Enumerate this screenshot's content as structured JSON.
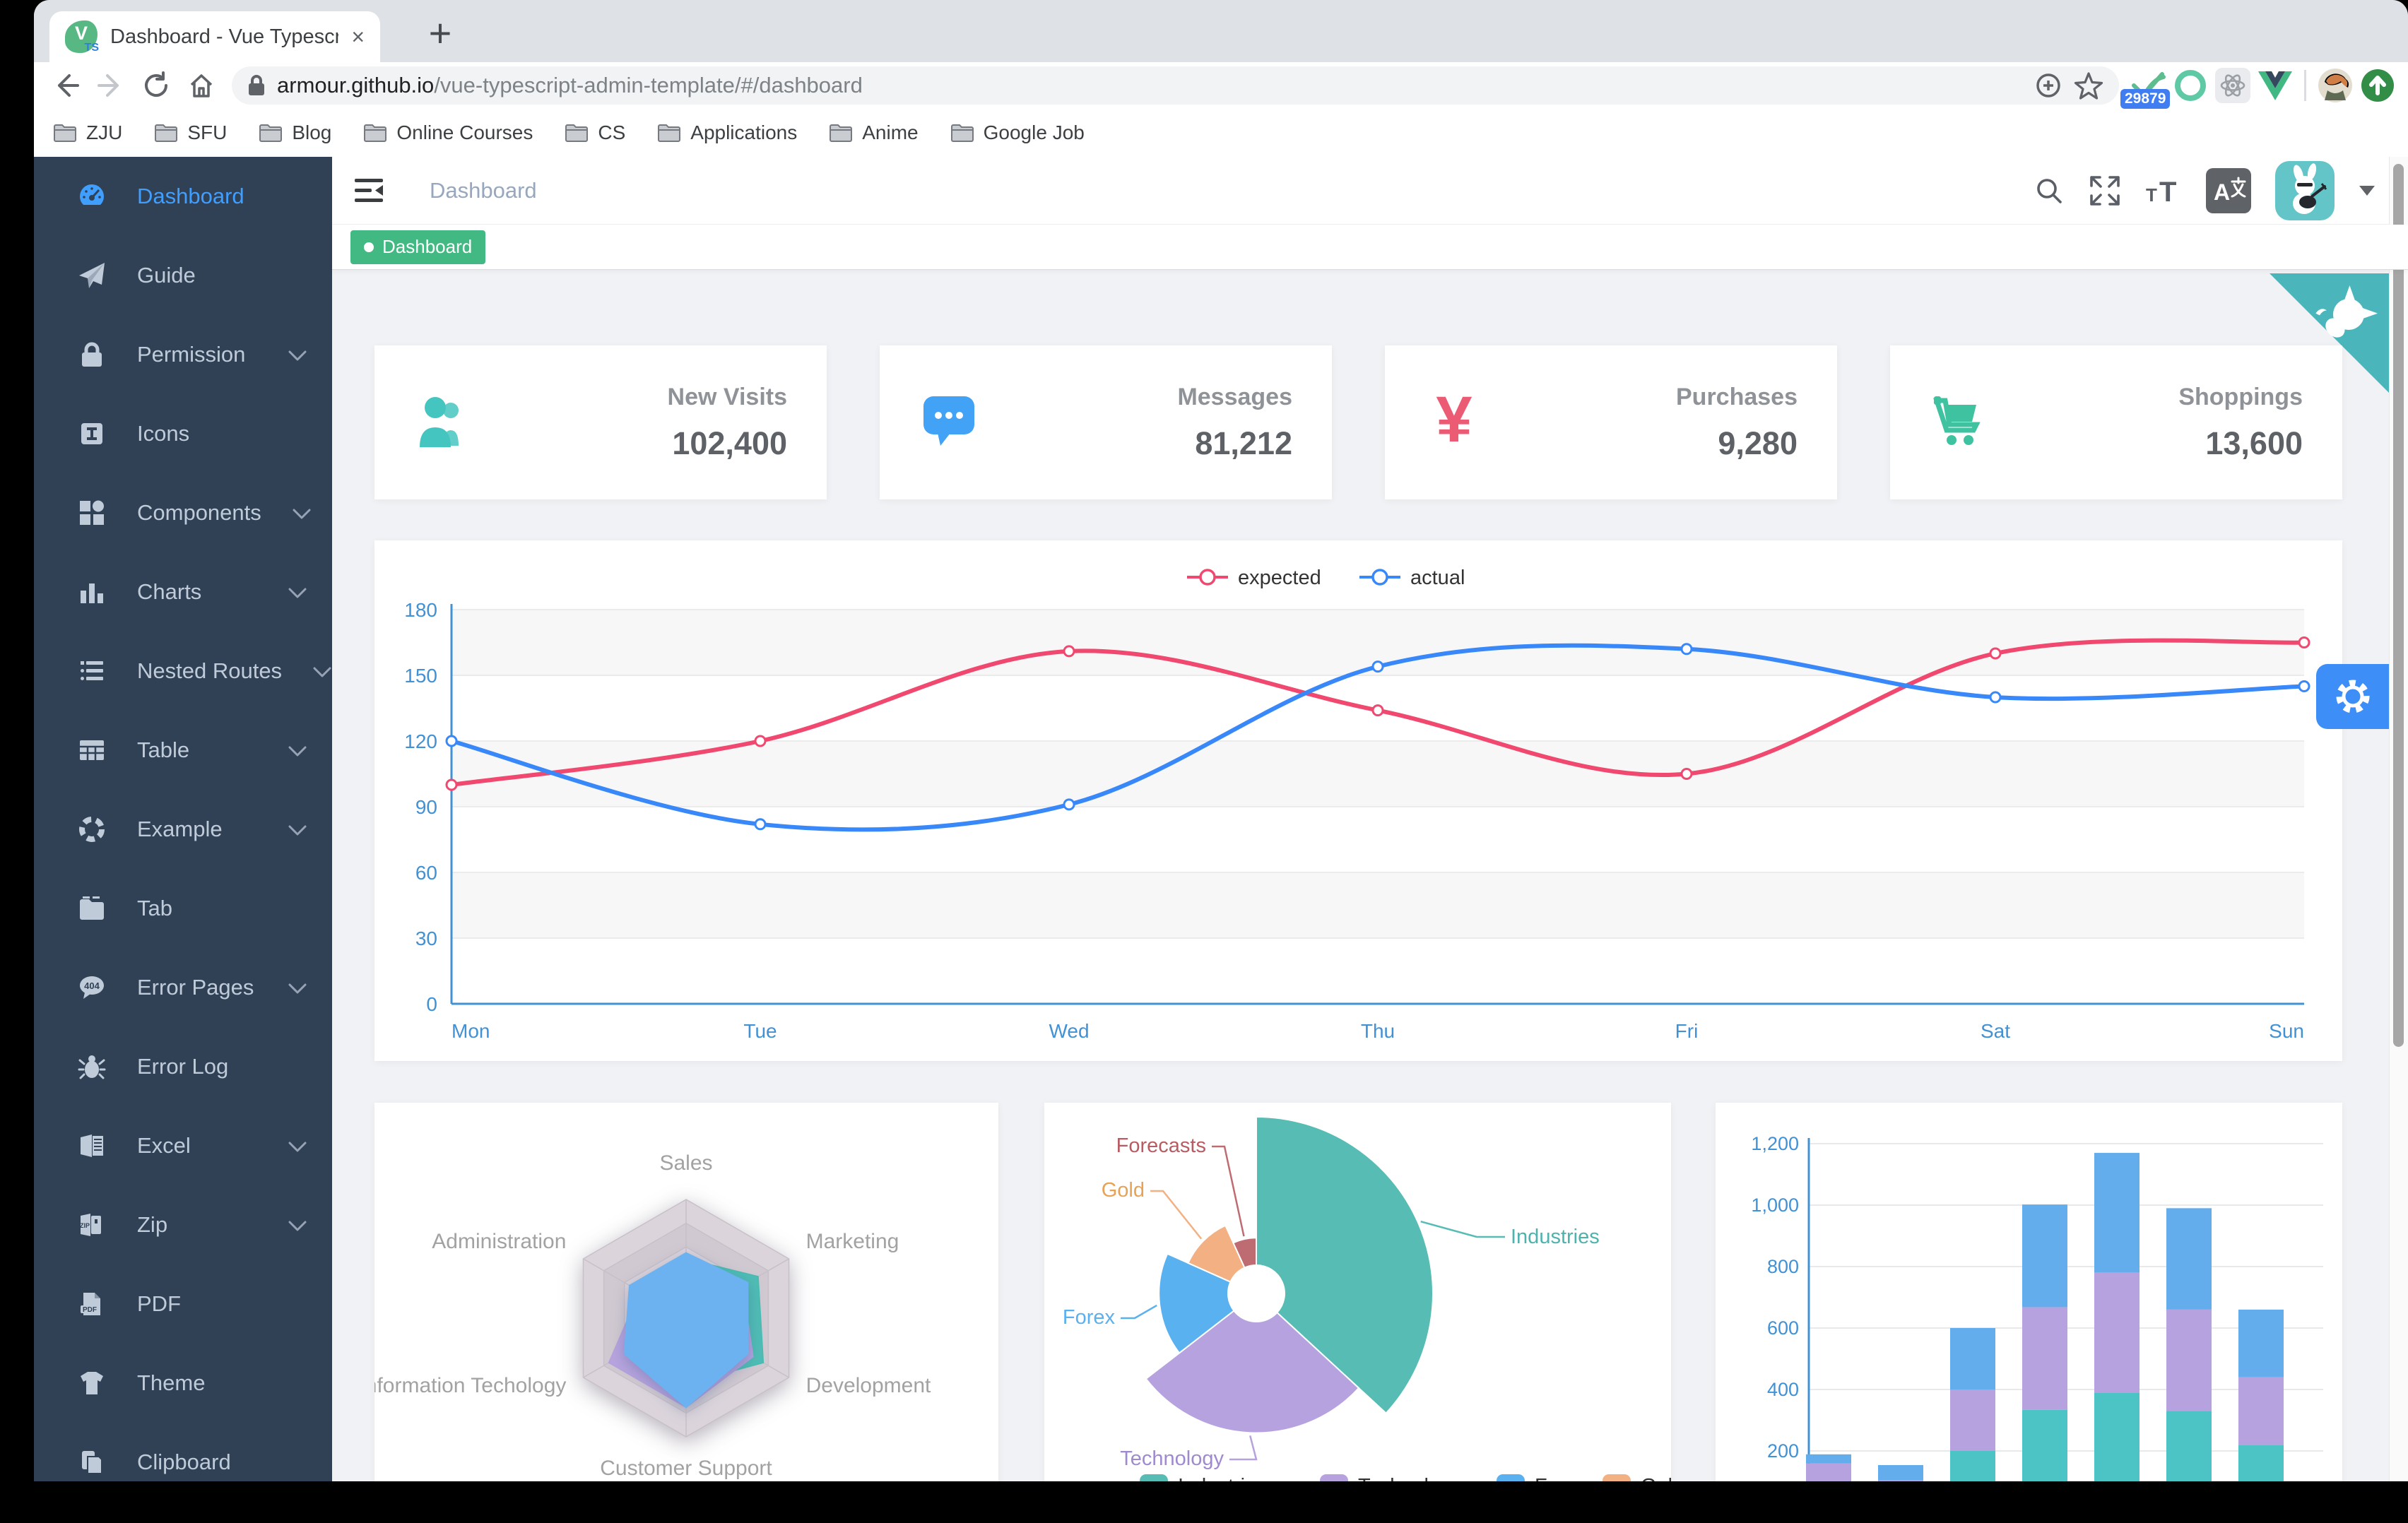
{
  "browser": {
    "tab": {
      "title": "Dashboard - Vue Typescript Ad",
      "favicon_letter": "V",
      "favicon_sub": "TS",
      "close_label": "×",
      "new_tab_label": "+"
    },
    "url": {
      "domain": "armour.github.io",
      "path": "/vue-typescript-admin-template/#/dashboard"
    },
    "extension_badge": "29879",
    "bookmarks": [
      "ZJU",
      "SFU",
      "Blog",
      "Online Courses",
      "CS",
      "Applications",
      "Anime",
      "Google Job"
    ]
  },
  "sidebar": {
    "items": [
      {
        "label": "Dashboard",
        "icon": "dashboard-icon",
        "active": true,
        "chevron": false
      },
      {
        "label": "Guide",
        "icon": "guide-icon",
        "active": false,
        "chevron": false
      },
      {
        "label": "Permission",
        "icon": "lock-icon",
        "active": false,
        "chevron": true
      },
      {
        "label": "Icons",
        "icon": "icons-icon",
        "active": false,
        "chevron": false
      },
      {
        "label": "Components",
        "icon": "component-icon",
        "active": false,
        "chevron": true
      },
      {
        "label": "Charts",
        "icon": "chart-icon",
        "active": false,
        "chevron": true
      },
      {
        "label": "Nested Routes",
        "icon": "nested-icon",
        "active": false,
        "chevron": true
      },
      {
        "label": "Table",
        "icon": "table-icon",
        "active": false,
        "chevron": true
      },
      {
        "label": "Example",
        "icon": "example-icon",
        "active": false,
        "chevron": true
      },
      {
        "label": "Tab",
        "icon": "tab-icon",
        "active": false,
        "chevron": false
      },
      {
        "label": "Error Pages",
        "icon": "error404-icon",
        "active": false,
        "chevron": true
      },
      {
        "label": "Error Log",
        "icon": "bug-icon",
        "active": false,
        "chevron": false
      },
      {
        "label": "Excel",
        "icon": "excel-icon",
        "active": false,
        "chevron": true
      },
      {
        "label": "Zip",
        "icon": "zip-icon",
        "active": false,
        "chevron": true
      },
      {
        "label": "PDF",
        "icon": "pdf-icon",
        "active": false,
        "chevron": false
      },
      {
        "label": "Theme",
        "icon": "theme-icon",
        "active": false,
        "chevron": false
      },
      {
        "label": "Clipboard",
        "icon": "clipboard-icon",
        "active": false,
        "chevron": false
      }
    ]
  },
  "navbar": {
    "breadcrumb": "Dashboard"
  },
  "tags": {
    "items": [
      {
        "label": "Dashboard",
        "active": true
      }
    ]
  },
  "stats": {
    "cards": [
      {
        "title": "New Visits",
        "value": "102,400",
        "icon": "peoples-icon",
        "color": "#45c5c0"
      },
      {
        "title": "Messages",
        "value": "81,212",
        "icon": "message-icon",
        "color": "#42a2f5"
      },
      {
        "title": "Purchases",
        "value": "9,280",
        "icon": "money-icon",
        "color": "#ec5b74"
      },
      {
        "title": "Shoppings",
        "value": "13,600",
        "icon": "shopping-icon",
        "color": "#3fc2a0"
      }
    ]
  },
  "chart_data": [
    {
      "id": "weekly-lines",
      "type": "line",
      "x": [
        "Mon",
        "Tue",
        "Wed",
        "Thu",
        "Fri",
        "Sat",
        "Sun"
      ],
      "series": [
        {
          "name": "expected",
          "color": "#f0486e",
          "values": [
            100,
            120,
            161,
            134,
            105,
            160,
            165
          ]
        },
        {
          "name": "actual",
          "color": "#3888fa",
          "values": [
            120,
            82,
            91,
            154,
            162,
            140,
            145
          ]
        }
      ],
      "ylim": [
        0,
        180
      ],
      "ytick_step": 30,
      "axis_color": "#4191d5",
      "legend_position": "top-center",
      "grid": true
    },
    {
      "id": "radar",
      "type": "radar",
      "indicators": [
        {
          "name": "Sales",
          "max": 10000
        },
        {
          "name": "Administration",
          "max": 20000
        },
        {
          "name": "Information Techology",
          "max": 20000
        },
        {
          "name": "Customer Support",
          "max": 20000
        },
        {
          "name": "Development",
          "max": 20000
        },
        {
          "name": "Marketing",
          "max": 20000
        }
      ],
      "series": [
        {
          "color": "#49bdb3",
          "values": [
            5000,
            7000,
            12000,
            11000,
            15000,
            14000
          ]
        },
        {
          "color": "#b6a2de",
          "values": [
            4000,
            9000,
            15000,
            15000,
            13000,
            11000
          ]
        },
        {
          "color": "#6cb2f0",
          "values": [
            5500,
            11000,
            12000,
            15000,
            12000,
            12000
          ]
        }
      ]
    },
    {
      "id": "rose-pie",
      "type": "pie",
      "rose": true,
      "slices": [
        {
          "label": "Industries",
          "value": 320,
          "color": "#56bcb4",
          "label_color": "#4db3ac"
        },
        {
          "label": "Technology",
          "value": 240,
          "color": "#b6a2de",
          "label_color": "#9f8ad0"
        },
        {
          "label": "Forex",
          "value": 149,
          "color": "#5ab1ef",
          "label_color": "#5ab1ef"
        },
        {
          "label": "Gold",
          "value": 100,
          "color": "#f3b183",
          "label_color": "#e8a254"
        },
        {
          "label": "Forecasts",
          "value": 59,
          "color": "#bf6b72",
          "label_color": "#b85c63"
        }
      ],
      "legend": [
        "Industries",
        "Technology",
        "Forex",
        "Gold"
      ],
      "legend_position": "bottom"
    },
    {
      "id": "stacked-bars",
      "type": "bar",
      "stacked": true,
      "categories": [
        "",
        "",
        "",
        "",
        "",
        "",
        ""
      ],
      "series": [
        {
          "color": "#4cc3c5",
          "values": [
            79,
            52,
            200,
            334,
            390,
            330,
            220
          ]
        },
        {
          "color": "#b6a2de",
          "values": [
            80,
            52,
            200,
            334,
            390,
            330,
            220
          ]
        },
        {
          "color": "#64aded",
          "values": [
            30,
            50,
            200,
            334,
            390,
            330,
            220
          ]
        }
      ],
      "ylim": [
        0,
        1200
      ],
      "ytick_step": 200,
      "ytick_labels": [
        "200",
        "400",
        "600",
        "800",
        "1,000",
        "1,200"
      ],
      "axis_color": "#4191d5"
    }
  ]
}
